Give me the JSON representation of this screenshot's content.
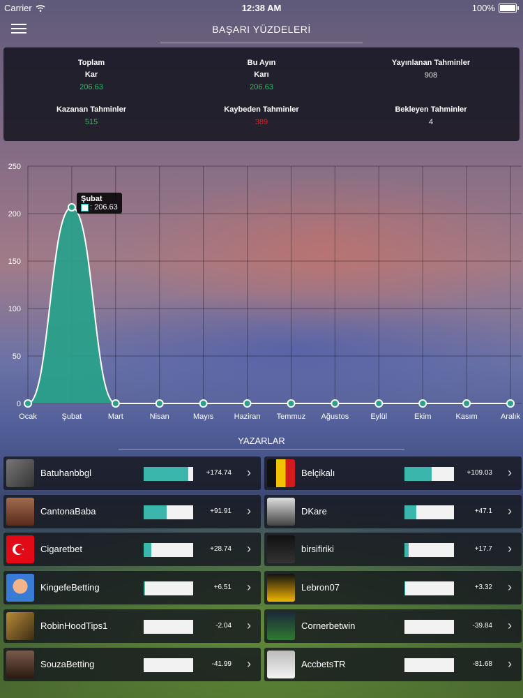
{
  "status": {
    "carrier": "Carrier",
    "time": "12:38 AM",
    "battery": "100%"
  },
  "header": {
    "title": "BAŞARI YÜZDELERİ"
  },
  "stats": [
    {
      "label1": "Toplam",
      "label2": "Kar",
      "value": "206.63",
      "color": "green"
    },
    {
      "label1": "Bu Ayın",
      "label2": "Karı",
      "value": "206.63",
      "color": "green"
    },
    {
      "label1": "Yayınlanan Tahminler",
      "label2": "",
      "value": "908",
      "color": "white"
    },
    {
      "label1": "Kazanan Tahminler",
      "label2": "",
      "value": "515",
      "color": "green"
    },
    {
      "label1": "Kaybeden Tahminler",
      "label2": "",
      "value": "389",
      "color": "red"
    },
    {
      "label1": "Bekleyen Tahminler",
      "label2": "",
      "value": "4",
      "color": "white"
    }
  ],
  "chart_data": {
    "type": "area",
    "categories": [
      "Ocak",
      "Şubat",
      "Mart",
      "Nisan",
      "Mayıs",
      "Haziran",
      "Temmuz",
      "Ağustos",
      "Eylül",
      "Ekim",
      "Kasım",
      "Aralık"
    ],
    "series": [
      {
        "values": [
          0,
          206.63,
          0,
          0,
          0,
          0,
          0,
          0,
          0,
          0,
          0,
          0
        ]
      }
    ],
    "ylim": [
      0,
      250
    ],
    "yticks": [
      "0",
      "50",
      "100",
      "150",
      "200",
      "250"
    ],
    "fill_color": "#2aa08a",
    "grid": true,
    "tooltip": {
      "title": "Şubat",
      "value": ": 206.63"
    }
  },
  "authors_section": {
    "title": "YAZARLAR"
  },
  "authors": [
    {
      "name": "Batuhanbbgl",
      "score": "+174.74",
      "progress": 0.9,
      "avatar": "soldiers-icon"
    },
    {
      "name": "Belçikalı",
      "score": "+109.03",
      "progress": 0.55,
      "avatar": "belgium-crest-icon"
    },
    {
      "name": "CantonaBaba",
      "score": "+91.91",
      "progress": 0.46,
      "avatar": "person-icon"
    },
    {
      "name": "DKare",
      "score": "+47.1",
      "progress": 0.24,
      "avatar": "street-icon"
    },
    {
      "name": "Cigaretbet",
      "score": "+28.74",
      "progress": 0.15,
      "avatar": "turkey-flag-icon"
    },
    {
      "name": "birsifiriki",
      "score": "+17.7",
      "progress": 0.09,
      "avatar": "logo-icon"
    },
    {
      "name": "KingefeBetting",
      "score": "+6.51",
      "progress": 0.03,
      "avatar": "cartoon-avatar-icon"
    },
    {
      "name": "Lebron07",
      "score": "+3.32",
      "progress": 0.02,
      "avatar": "basketball-player-icon"
    },
    {
      "name": "RobinHoodTips1",
      "score": "-2.04",
      "progress": 0,
      "avatar": "archer-icon"
    },
    {
      "name": "Cornerbetwin",
      "score": "-39.84",
      "progress": 0,
      "avatar": "stadium-icon"
    },
    {
      "name": "SouzaBetting",
      "score": "-41.99",
      "progress": 0,
      "avatar": "fighter-icon"
    },
    {
      "name": "AccbetsTR",
      "score": "-81.68",
      "progress": 0,
      "avatar": "person-cap-icon"
    }
  ]
}
